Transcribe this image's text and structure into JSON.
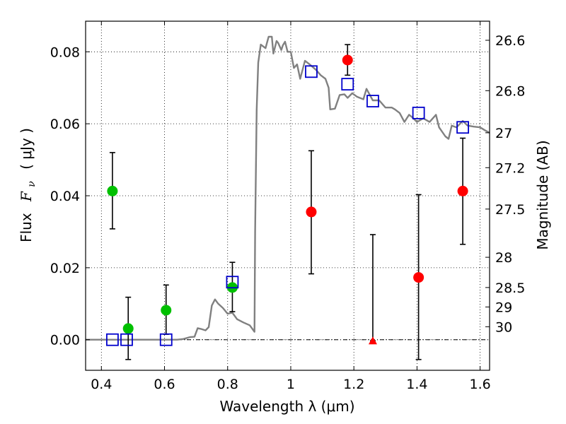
{
  "chart_data": {
    "type": "scatter",
    "xlabel": "Wavelength  λ (μm)",
    "ylabel": "Flux  F_ν  ( μJy )",
    "ylabel_parts": {
      "prefix": "Flux",
      "symbol": "F",
      "subscript": "ν",
      "unit": "( μJy )"
    },
    "y2label": "Magnitude (AB)",
    "xlim": [
      0.35,
      1.63
    ],
    "ylim": [
      -0.0085,
      0.0885
    ],
    "grid": true,
    "x_ticks": [
      0.4,
      0.6,
      0.8,
      1.0,
      1.2,
      1.4,
      1.6
    ],
    "x_tick_labels": [
      "0.4",
      "0.6",
      "0.8",
      "1",
      "1.2",
      "1.4",
      "1.6"
    ],
    "y_ticks": [
      0.0,
      0.02,
      0.04,
      0.06,
      0.08
    ],
    "y_tick_labels": [
      "0.00",
      "0.02",
      "0.04",
      "0.06",
      "0.08"
    ],
    "y2_ticks": [
      {
        "label": "26.6",
        "flux": 0.0832
      },
      {
        "label": "26.8",
        "flux": 0.0692
      },
      {
        "label": "27",
        "flux": 0.0575
      },
      {
        "label": "27.2",
        "flux": 0.0478
      },
      {
        "label": "27.5",
        "flux": 0.0363
      },
      {
        "label": "28",
        "flux": 0.0229
      },
      {
        "label": "28.5",
        "flux": 0.0145
      },
      {
        "label": "29",
        "flux": 0.0091
      },
      {
        "label": "30",
        "flux": 0.0036
      }
    ],
    "colors": {
      "model": "#808080",
      "green": "#00c000",
      "red": "#ff0000",
      "blue": "#0000cc",
      "errorbar": "#000000"
    },
    "series": [
      {
        "kind": "line",
        "points": [
          [
            0.35,
            0.0
          ],
          [
            0.6,
            0.0
          ],
          [
            0.64,
            0.0
          ],
          [
            0.66,
            0.0002
          ],
          [
            0.68,
            0.0007
          ],
          [
            0.695,
            0.0008
          ],
          [
            0.705,
            0.0032
          ],
          [
            0.715,
            0.003
          ],
          [
            0.73,
            0.0026
          ],
          [
            0.74,
            0.0035
          ],
          [
            0.75,
            0.0095
          ],
          [
            0.76,
            0.0112
          ],
          [
            0.77,
            0.01
          ],
          [
            0.785,
            0.0088
          ],
          [
            0.8,
            0.0072
          ],
          [
            0.815,
            0.0075
          ],
          [
            0.83,
            0.0057
          ],
          [
            0.85,
            0.0048
          ],
          [
            0.87,
            0.004
          ],
          [
            0.885,
            0.0022
          ],
          [
            0.887,
            0.03
          ],
          [
            0.892,
            0.064
          ],
          [
            0.897,
            0.077
          ],
          [
            0.905,
            0.082
          ],
          [
            0.92,
            0.081
          ],
          [
            0.93,
            0.0842
          ],
          [
            0.94,
            0.0842
          ],
          [
            0.945,
            0.0795
          ],
          [
            0.955,
            0.083
          ],
          [
            0.96,
            0.0825
          ],
          [
            0.97,
            0.0805
          ],
          [
            0.975,
            0.0818
          ],
          [
            0.982,
            0.0828
          ],
          [
            0.99,
            0.08
          ],
          [
            1.0,
            0.08
          ],
          [
            1.01,
            0.0755
          ],
          [
            1.02,
            0.0765
          ],
          [
            1.03,
            0.0725
          ],
          [
            1.045,
            0.0775
          ],
          [
            1.06,
            0.0765
          ],
          [
            1.08,
            0.075
          ],
          [
            1.095,
            0.0735
          ],
          [
            1.11,
            0.0725
          ],
          [
            1.12,
            0.07
          ],
          [
            1.125,
            0.064
          ],
          [
            1.14,
            0.0642
          ],
          [
            1.155,
            0.068
          ],
          [
            1.17,
            0.0682
          ],
          [
            1.18,
            0.0672
          ],
          [
            1.195,
            0.0685
          ],
          [
            1.21,
            0.0675
          ],
          [
            1.23,
            0.0668
          ],
          [
            1.24,
            0.0697
          ],
          [
            1.26,
            0.0665
          ],
          [
            1.28,
            0.0665
          ],
          [
            1.3,
            0.0645
          ],
          [
            1.32,
            0.0645
          ],
          [
            1.33,
            0.064
          ],
          [
            1.345,
            0.063
          ],
          [
            1.36,
            0.0605
          ],
          [
            1.375,
            0.0625
          ],
          [
            1.385,
            0.0618
          ],
          [
            1.4,
            0.0605
          ],
          [
            1.42,
            0.0615
          ],
          [
            1.44,
            0.0605
          ],
          [
            1.46,
            0.0625
          ],
          [
            1.47,
            0.059
          ],
          [
            1.49,
            0.0565
          ],
          [
            1.5,
            0.0558
          ],
          [
            1.51,
            0.0595
          ],
          [
            1.525,
            0.059
          ],
          [
            1.545,
            0.0608
          ],
          [
            1.56,
            0.0595
          ],
          [
            1.58,
            0.0592
          ],
          [
            1.6,
            0.059
          ],
          [
            1.615,
            0.0582
          ],
          [
            1.63,
            0.0575
          ]
        ]
      },
      {
        "kind": "markers",
        "marker": "circle",
        "color": "green",
        "points": [
          {
            "x": 0.435,
            "y": 0.0413,
            "lo": 0.0308,
            "hi": 0.052
          },
          {
            "x": 0.485,
            "y": 0.0031,
            "lo": -0.0055,
            "hi": 0.0118
          },
          {
            "x": 0.605,
            "y": 0.0082,
            "lo": 0.0015,
            "hi": 0.0152
          },
          {
            "x": 0.815,
            "y": 0.0145,
            "lo": 0.0078,
            "hi": 0.0215
          }
        ]
      },
      {
        "kind": "markers",
        "marker": "circle",
        "color": "red",
        "points": [
          {
            "x": 1.065,
            "y": 0.0355,
            "lo": 0.0183,
            "hi": 0.0525
          },
          {
            "x": 1.18,
            "y": 0.0777,
            "lo": 0.0735,
            "hi": 0.082
          },
          {
            "x": 1.405,
            "y": 0.0173,
            "lo": -0.0055,
            "hi": 0.0403
          },
          {
            "x": 1.545,
            "y": 0.0413,
            "lo": 0.0265,
            "hi": 0.056
          }
        ]
      },
      {
        "kind": "markers",
        "marker": "triangle",
        "color": "red",
        "points": [
          {
            "x": 1.26,
            "y": -0.0003,
            "lo": -0.0003,
            "hi": 0.0292
          }
        ]
      },
      {
        "kind": "markers",
        "marker": "square",
        "color": "blue",
        "points": [
          {
            "x": 0.435,
            "y": 0.0
          },
          {
            "x": 0.48,
            "y": 0.0
          },
          {
            "x": 0.605,
            "y": 0.0
          },
          {
            "x": 0.815,
            "y": 0.016
          },
          {
            "x": 1.065,
            "y": 0.0745
          },
          {
            "x": 1.18,
            "y": 0.071
          },
          {
            "x": 1.26,
            "y": 0.0663
          },
          {
            "x": 1.405,
            "y": 0.063
          },
          {
            "x": 1.545,
            "y": 0.059
          }
        ]
      }
    ]
  }
}
